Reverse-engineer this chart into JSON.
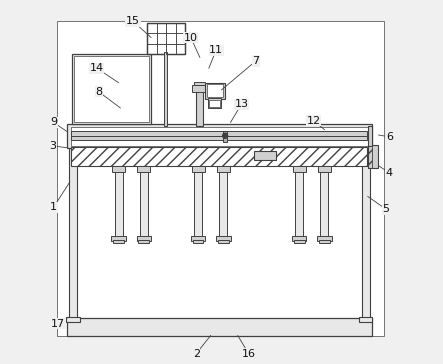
{
  "bg_color": "#f0f0f0",
  "line_color": "#404040",
  "fill_light": "#e8e8e8",
  "fill_mid": "#d0d0d0",
  "fill_dark": "#b0b0b0",
  "font_size": 8,
  "labels_info": [
    [
      1,
      0.035,
      0.43,
      0.08,
      0.5
    ],
    [
      2,
      0.43,
      0.025,
      0.47,
      0.075
    ],
    [
      3,
      0.032,
      0.6,
      0.072,
      0.595
    ],
    [
      4,
      0.965,
      0.525,
      0.935,
      0.545
    ],
    [
      5,
      0.955,
      0.425,
      0.905,
      0.46
    ],
    [
      6,
      0.965,
      0.625,
      0.935,
      0.63
    ],
    [
      7,
      0.595,
      0.835,
      0.5,
      0.755
    ],
    [
      8,
      0.16,
      0.75,
      0.22,
      0.705
    ],
    [
      9,
      0.035,
      0.665,
      0.072,
      0.64
    ],
    [
      10,
      0.415,
      0.9,
      0.44,
      0.845
    ],
    [
      11,
      0.485,
      0.865,
      0.465,
      0.815
    ],
    [
      12,
      0.755,
      0.67,
      0.785,
      0.645
    ],
    [
      13,
      0.555,
      0.715,
      0.525,
      0.665
    ],
    [
      14,
      0.155,
      0.815,
      0.215,
      0.775
    ],
    [
      15,
      0.255,
      0.945,
      0.305,
      0.9
    ],
    [
      16,
      0.575,
      0.025,
      0.545,
      0.075
    ],
    [
      17,
      0.048,
      0.108,
      0.075,
      0.125
    ]
  ]
}
